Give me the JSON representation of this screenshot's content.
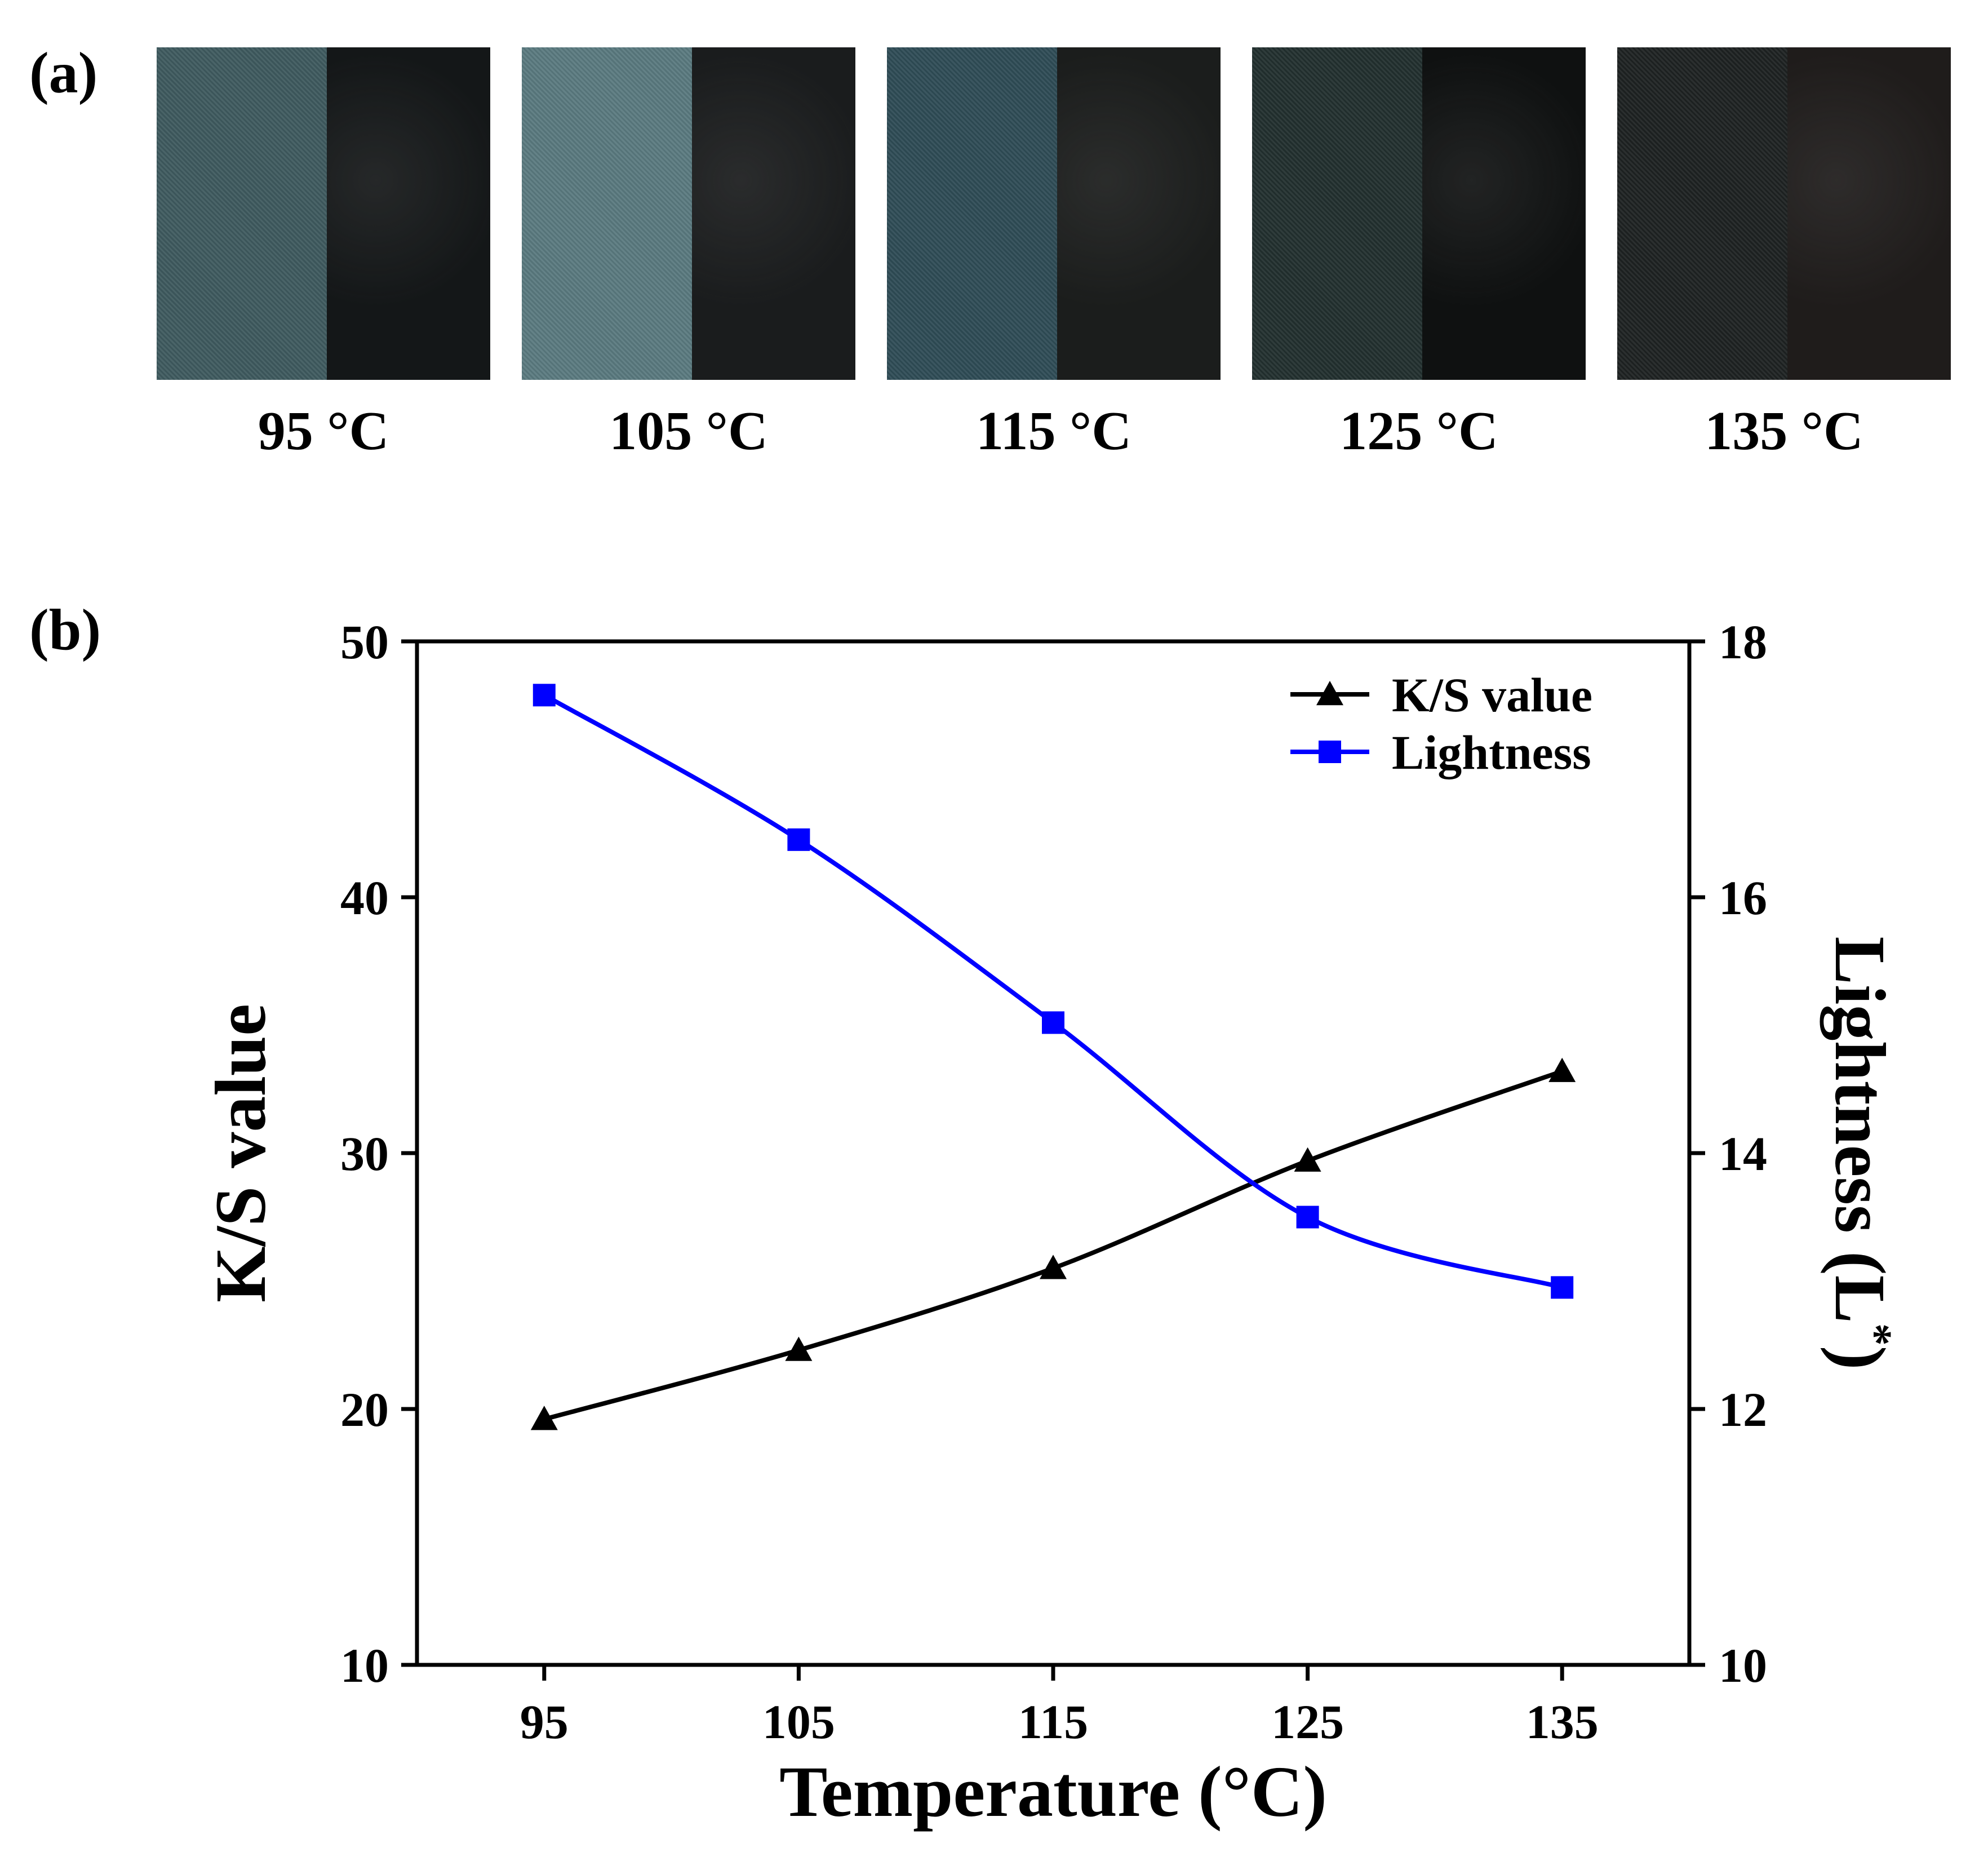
{
  "panels": {
    "a_label": "(a)",
    "b_label": "(b)"
  },
  "swatches": [
    {
      "caption": "95 °C",
      "left_color": "#3f5a5f",
      "right_color": "#141718"
    },
    {
      "caption": "105 °C",
      "left_color": "#5a7a80",
      "right_color": "#1a1c1d"
    },
    {
      "caption": "115 °C",
      "left_color": "#2f4c56",
      "right_color": "#1b1d1c"
    },
    {
      "caption": "125 °C",
      "left_color": "#22302f",
      "right_color": "#0f1111"
    },
    {
      "caption": "135 °C",
      "left_color": "#1e2222",
      "right_color": "#1f1c1b"
    }
  ],
  "chart_data": {
    "type": "line",
    "x": [
      95,
      105,
      115,
      125,
      135
    ],
    "x_ticks": [
      "95",
      "105",
      "115",
      "125",
      "135"
    ],
    "xlim": [
      90,
      140
    ],
    "xlabel": "Temperature (°C)",
    "y_left": {
      "label": "K/S value",
      "lim": [
        10,
        50
      ],
      "ticks": [
        "10",
        "20",
        "30",
        "40",
        "50"
      ]
    },
    "y_right": {
      "label_main": "Lightness (L",
      "label_sup": "*",
      "label_end": ")",
      "lim": [
        10,
        18
      ],
      "ticks": [
        "10",
        "12",
        "14",
        "16",
        "18"
      ]
    },
    "series": [
      {
        "name": "K/S value",
        "axis": "left",
        "marker": "triangle",
        "color": "#000000",
        "values": [
          19.6,
          22.3,
          25.5,
          29.7,
          33.2
        ]
      },
      {
        "name": "Lightness",
        "axis": "right",
        "marker": "square",
        "color": "#0000ff",
        "values": [
          17.58,
          16.45,
          15.02,
          13.5,
          12.95
        ]
      }
    ],
    "legend_position": "top-right",
    "grid": false
  }
}
